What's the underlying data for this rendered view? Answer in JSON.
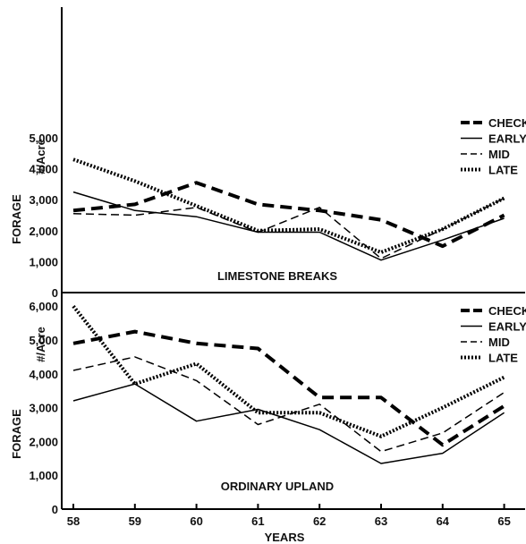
{
  "chart_data": [
    {
      "type": "line",
      "title": "LIMESTONE BREAKS",
      "ylabel": "FORAGE",
      "yunit": "#/Acre",
      "x": [
        "58",
        "59",
        "60",
        "61",
        "62",
        "63",
        "64",
        "65"
      ],
      "xlabel": "YEARS",
      "ylim": [
        0,
        5000
      ],
      "yticks": [
        "0",
        "1,000",
        "2,000",
        "3,000",
        "4,000",
        "5,000"
      ],
      "legend_position": "right",
      "series": [
        {
          "name": "CHECK",
          "values": [
            2650,
            2850,
            3550,
            2850,
            2650,
            2350,
            1500,
            2500
          ],
          "color": "#000000",
          "style": "heavy-dash"
        },
        {
          "name": "EARLY",
          "values": [
            3250,
            2650,
            2450,
            1950,
            1950,
            1050,
            1700,
            2400
          ],
          "color": "#000000",
          "style": "solid"
        },
        {
          "name": "MID",
          "values": [
            2550,
            2500,
            2750,
            1950,
            2750,
            1100,
            2050,
            3050
          ],
          "color": "#000000",
          "style": "dash"
        },
        {
          "name": "LATE",
          "values": [
            4300,
            3600,
            2800,
            2000,
            2050,
            1300,
            2050,
            3050
          ],
          "color": "#000000",
          "style": "dotted"
        }
      ]
    },
    {
      "type": "line",
      "title": "ORDINARY UPLAND",
      "ylabel": "FORAGE",
      "yunit": "#/Acre",
      "x": [
        "58",
        "59",
        "60",
        "61",
        "62",
        "63",
        "64",
        "65"
      ],
      "xlabel": "YEARS",
      "ylim": [
        0,
        6000
      ],
      "yticks": [
        "0",
        "1,000",
        "2,000",
        "3,000",
        "4,000",
        "5,000",
        "6,000"
      ],
      "legend_position": "right",
      "series": [
        {
          "name": "CHECK",
          "values": [
            4900,
            5250,
            4900,
            4750,
            3300,
            3300,
            1900,
            3050
          ],
          "color": "#000000",
          "style": "heavy-dash"
        },
        {
          "name": "EARLY",
          "values": [
            3200,
            3700,
            2600,
            2950,
            2350,
            1350,
            1650,
            2850
          ],
          "color": "#000000",
          "style": "solid"
        },
        {
          "name": "MID",
          "values": [
            4100,
            4500,
            3800,
            2500,
            3100,
            1700,
            2250,
            3450
          ],
          "color": "#000000",
          "style": "dash"
        },
        {
          "name": "LATE",
          "values": [
            6000,
            3700,
            4300,
            2850,
            2850,
            2150,
            3000,
            3900
          ],
          "color": "#000000",
          "style": "dotted"
        }
      ]
    }
  ]
}
